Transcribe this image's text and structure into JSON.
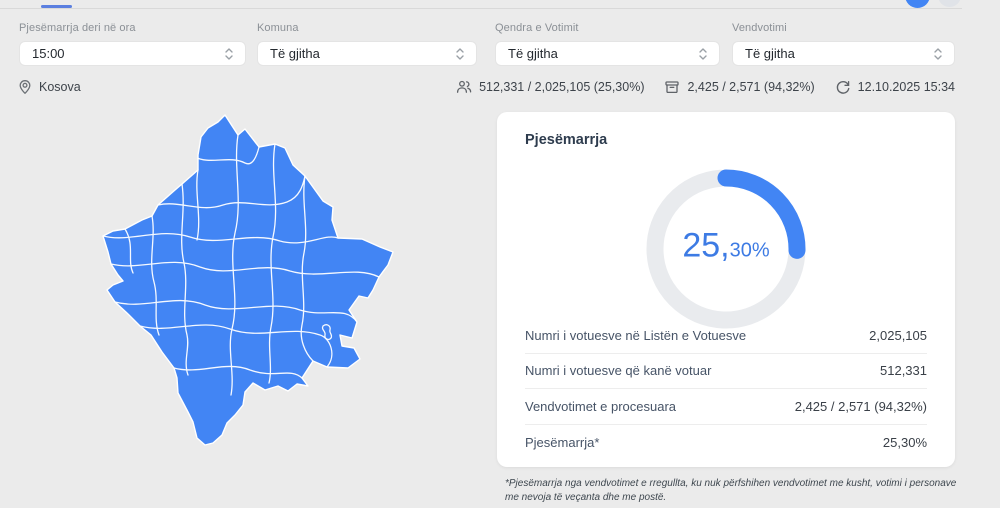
{
  "colors": {
    "accent": "#4285f4",
    "donut_track": "#e9ebee",
    "background": "#ebebeb"
  },
  "filters": [
    {
      "label": "Pjesëmarrja deri në ora",
      "value": "15:00"
    },
    {
      "label": "Komuna",
      "value": "Të gjitha"
    },
    {
      "label": "Qendra e Votimit",
      "value": "Të gjitha"
    },
    {
      "label": "Vendvotimi",
      "value": "Të gjitha"
    }
  ],
  "location": {
    "name": "Kosova"
  },
  "stats": [
    {
      "icon": "voters-icon",
      "text": "512,331 / 2,025,105 (25,30%)"
    },
    {
      "icon": "ballot-box-icon",
      "text": "2,425 / 2,571 (94,32%)"
    },
    {
      "icon": "refresh-icon",
      "text": "12.10.2025 15:34"
    }
  ],
  "card": {
    "title": "Pjesëmarrja",
    "donut": {
      "percent_main": "25,",
      "percent_frac": "30%"
    },
    "rows": [
      {
        "label": "Numri i votuesve në Listën e Votuesve",
        "value": "2,025,105"
      },
      {
        "label": "Numri i votuesve që kanë votuar",
        "value": "512,331"
      },
      {
        "label": "Vendvotimet e procesuara",
        "value": "2,425 / 2,571 (94,32%)"
      },
      {
        "label": "Pjesëmarrja*",
        "value": "25,30%"
      }
    ],
    "footnote": "*Pjesëmarrja nga vendvotimet e rregullta, ku nuk përfshihen vendvotimet me kusht, votimi i personave me nevoja të veçanta dhe me postë."
  },
  "chart_data": {
    "type": "donut",
    "title": "Pjesëmarrja",
    "value_percent": 25.3,
    "center_label": "25,30%",
    "arc_color": "#4285f4",
    "track_color": "#e9ebee",
    "legend": "none"
  }
}
